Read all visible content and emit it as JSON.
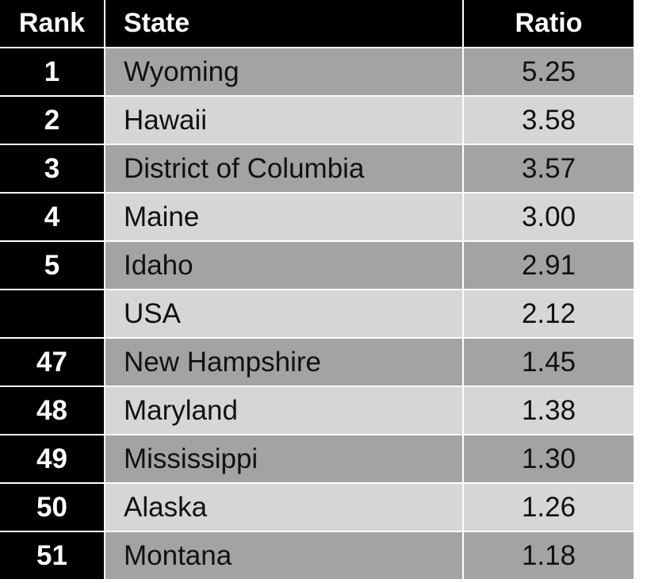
{
  "table": {
    "header": [
      "Rank",
      "State",
      "Ratio"
    ],
    "rows": [
      [
        "1",
        "Wyoming",
        "5.25"
      ],
      [
        "2",
        "Hawaii",
        "3.58"
      ],
      [
        "3",
        "District of Columbia",
        "3.57"
      ],
      [
        "4",
        "Maine",
        "3.00"
      ],
      [
        "5",
        "Idaho",
        "2.91"
      ],
      [
        null,
        "USA",
        "2.12"
      ],
      [
        "47",
        "New Hampshire",
        "1.45"
      ],
      [
        "48",
        "Maryland",
        "1.38"
      ],
      [
        "49",
        "Mississippi",
        "1.30"
      ],
      [
        "50",
        "Alaska",
        "1.26"
      ],
      [
        "51",
        "Montana",
        "1.18"
      ]
    ]
  }
}
